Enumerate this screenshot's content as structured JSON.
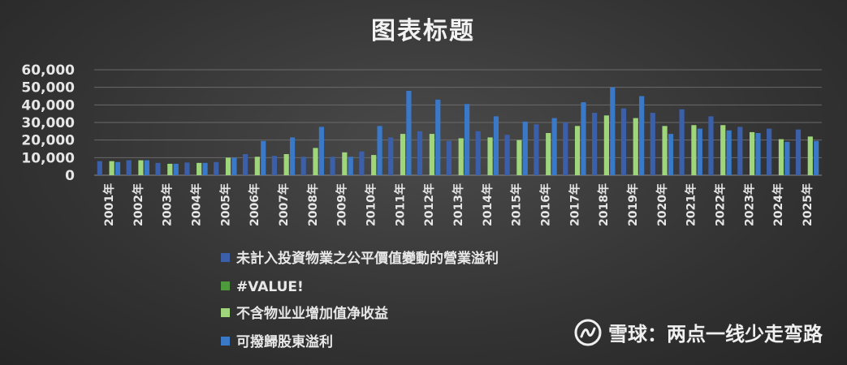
{
  "colors": {
    "series1": "#3b5fa8",
    "series2": "#4e9a3c",
    "series3": "#9fd67c",
    "series4": "#3a78c8",
    "grid": "#6a6a6a"
  },
  "watermark": {
    "text": "雪球：两点一线少走弯路",
    "icon": "xueqiu-logo-icon"
  },
  "chart_data": {
    "type": "bar",
    "title": "图表标题",
    "xlabel": "",
    "ylabel": "",
    "ylim": [
      0,
      60000
    ],
    "yticks": [
      0,
      10000,
      20000,
      30000,
      40000,
      50000,
      60000
    ],
    "ytick_labels": [
      "0",
      "10,000",
      "20,000",
      "30,000",
      "40,000",
      "50,000",
      "60,000"
    ],
    "grid": true,
    "legend_position": "bottom",
    "categories": [
      "2001年",
      "2002年",
      "2003年",
      "2004年",
      "2005年",
      "2006年",
      "2007年",
      "2008年",
      "2009年",
      "2010年",
      "2011年",
      "2012年",
      "2013年",
      "2014年",
      "2015年",
      "2016年",
      "2017年",
      "2018年",
      "2019年",
      "2020年",
      "2021年",
      "2022年",
      "2023年",
      "2024年",
      "2025年"
    ],
    "series": [
      {
        "name": "未計入投資物業之公平價值變動的營業溢利",
        "values": [
          8000,
          8500,
          7000,
          7200,
          7500,
          12000,
          11000,
          10500,
          10500,
          13500,
          21500,
          25000,
          19500,
          25000,
          23000,
          29000,
          30000,
          35500,
          38000,
          35500,
          37500,
          33500,
          27500,
          26500,
          26000
        ]
      },
      {
        "name": "#VALUE!",
        "values": [
          0,
          0,
          0,
          0,
          0,
          0,
          0,
          0,
          0,
          0,
          0,
          0,
          0,
          0,
          0,
          0,
          0,
          0,
          0,
          0,
          0,
          0,
          0,
          0,
          0
        ]
      },
      {
        "name": "不含物业业增加值净收益",
        "values": [
          8000,
          8500,
          6500,
          7000,
          10000,
          10500,
          12000,
          15500,
          13000,
          11500,
          23500,
          23500,
          21000,
          21500,
          20000,
          24000,
          28000,
          34000,
          32500,
          28000,
          28500,
          28500,
          24500,
          20500,
          22000
        ]
      },
      {
        "name": "可撥歸股東溢利",
        "values": [
          7500,
          8500,
          6500,
          7000,
          10000,
          19500,
          21500,
          27500,
          10500,
          28000,
          48000,
          43000,
          40500,
          33500,
          30500,
          32500,
          41500,
          50000,
          45000,
          23500,
          26500,
          25500,
          24000,
          19000,
          19500
        ]
      }
    ]
  }
}
